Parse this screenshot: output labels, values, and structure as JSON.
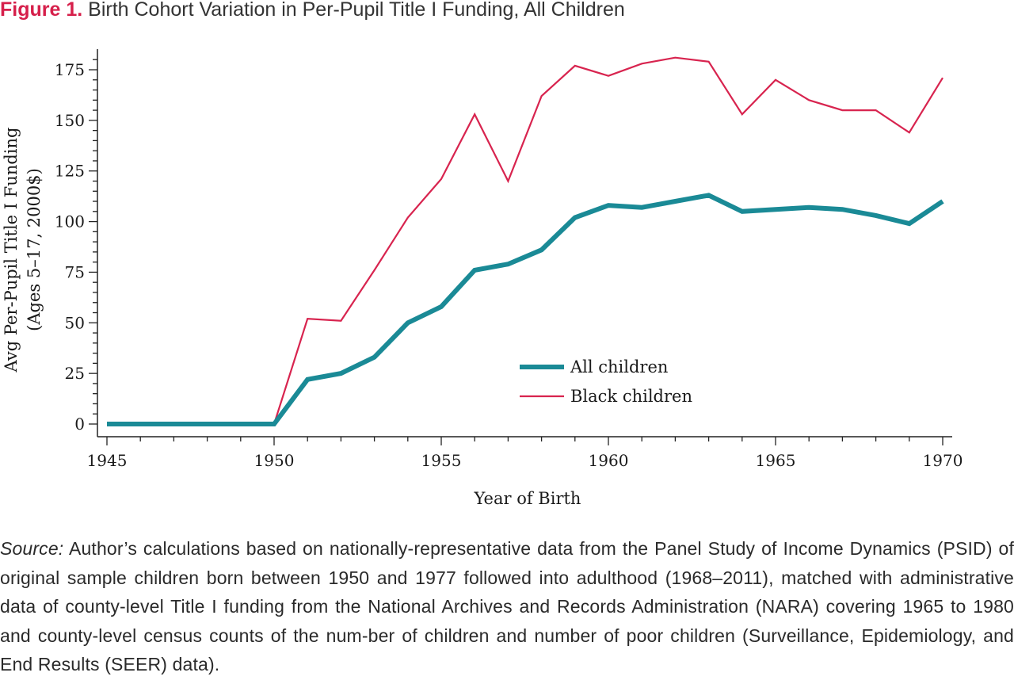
{
  "figure": {
    "label": "Figure 1.",
    "title": "Birth Cohort Variation in Per-Pupil Title I Funding, All Children"
  },
  "source": {
    "label": "Source:",
    "text": "Author’s calculations based on nationally-representative data from the Panel Study of Income Dynamics (PSID) of original sample children born between 1950 and 1977 followed into adulthood (1968–2011), matched with administrative data of county-level Title I funding from the National Archives and Records Administration (NARA) covering 1965 to 1980 and county-level census counts of the num-ber of children and number of poor children (Surveillance, Epidemiology, and End Results (SEER) data)."
  },
  "colors": {
    "all_children": "#1a8a96",
    "black_children": "#d8244f",
    "figure_label": "#d6204b"
  },
  "chart_data": {
    "type": "line",
    "xlabel": "Year of Birth",
    "ylabel_line1": "Avg Per-Pupil Title I Funding",
    "ylabel_line2": "(Ages 5–17, 2000$)",
    "xlim": [
      1945,
      1970
    ],
    "ylim": [
      -6,
      186
    ],
    "xticks": [
      1945,
      1950,
      1955,
      1960,
      1965,
      1970
    ],
    "yticks": [
      0,
      25,
      50,
      75,
      100,
      125,
      150,
      175
    ],
    "legend_position": "lower-right",
    "x": [
      1945,
      1946,
      1947,
      1948,
      1949,
      1950,
      1951,
      1952,
      1953,
      1954,
      1955,
      1956,
      1957,
      1958,
      1959,
      1960,
      1961,
      1962,
      1963,
      1964,
      1965,
      1966,
      1967,
      1968,
      1969,
      1970
    ],
    "series": [
      {
        "name": "All children",
        "values": [
          0,
          0,
          0,
          0,
          0,
          0,
          22,
          25,
          33,
          50,
          58,
          76,
          79,
          86,
          102,
          108,
          107,
          110,
          113,
          105,
          106,
          107,
          106,
          103,
          99,
          110
        ]
      },
      {
        "name": "Black children",
        "values": [
          0,
          0,
          0,
          0,
          0,
          0,
          52,
          51,
          76,
          102,
          121,
          153,
          120,
          162,
          177,
          172,
          178,
          181,
          179,
          153,
          170,
          160,
          155,
          155,
          144,
          171
        ]
      }
    ]
  }
}
